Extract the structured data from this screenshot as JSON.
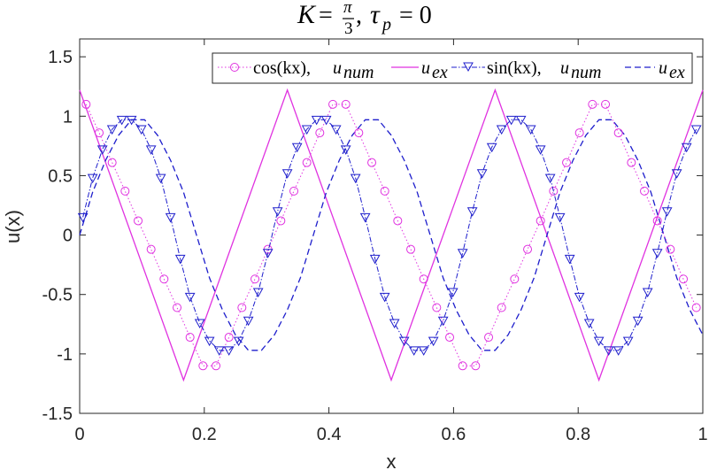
{
  "chart_data": {
    "type": "line",
    "title": {
      "lhs": "K",
      "frac_num": "π",
      "frac_den": "3",
      "sep": ",",
      "tau": "τ",
      "tau_sub": "p",
      "rhs": "= 0"
    },
    "xlabel": "x",
    "ylabel": "u(x)",
    "xlim": [
      0,
      1
    ],
    "ylim": [
      -1.5,
      1.65
    ],
    "xticks": [
      0,
      0.2,
      0.4,
      0.6,
      0.8,
      1
    ],
    "xtick_labels": [
      "0",
      "0.2",
      "0.4",
      "0.6",
      "0.8",
      "1"
    ],
    "yticks": [
      -1.5,
      -1,
      -0.5,
      0,
      0.5,
      1,
      1.5
    ],
    "ytick_labels": [
      "-1.5",
      "-1",
      "-0.5",
      "0",
      "0.5",
      "1",
      "1.5"
    ],
    "grid": false,
    "legend": {
      "placement": "top-right",
      "entries": [
        {
          "label_main": "cos(kx), ",
          "label_sub_base": "u",
          "label_sub": "num",
          "style": "dotted-circle"
        },
        {
          "label_main": "",
          "label_sub_base": "u",
          "label_sub": "ex",
          "style": "solid"
        },
        {
          "label_main": "sin(kx), ",
          "label_sub_base": "u",
          "label_sub": "num",
          "style": "dashdot-triangle"
        },
        {
          "label_main": "",
          "label_sub_base": "u",
          "label_sub": "ex",
          "style": "dashed"
        }
      ]
    },
    "series": [
      {
        "name": "cos(kx), u_num",
        "color": "#E032E0",
        "marker": "circle",
        "line": "dotted",
        "x": [
          0.0104,
          0.0313,
          0.0521,
          0.0729,
          0.0938,
          0.1146,
          0.1354,
          0.1563,
          0.1771,
          0.1979,
          0.2188,
          0.2396,
          0.2604,
          0.2813,
          0.3021,
          0.3229,
          0.3438,
          0.3646,
          0.3854,
          0.4063,
          0.4271,
          0.4479,
          0.4688,
          0.4896,
          0.5104,
          0.5313,
          0.5521,
          0.5729,
          0.5938,
          0.6146,
          0.6354,
          0.6563,
          0.6771,
          0.6979,
          0.7188,
          0.7396,
          0.7604,
          0.7813,
          0.8021,
          0.8229,
          0.8438,
          0.8646,
          0.8854,
          0.9063,
          0.9271,
          0.9479,
          0.9688,
          0.9896
        ],
        "y": [
          1.1,
          0.86,
          0.61,
          0.37,
          0.12,
          -0.12,
          -0.37,
          -0.61,
          -0.86,
          -1.1,
          -1.1,
          -0.86,
          -0.61,
          -0.37,
          -0.12,
          0.12,
          0.37,
          0.61,
          0.86,
          1.1,
          1.1,
          0.86,
          0.61,
          0.37,
          0.12,
          -0.12,
          -0.37,
          -0.61,
          -0.86,
          -1.1,
          -1.1,
          -0.86,
          -0.61,
          -0.37,
          -0.12,
          0.12,
          0.37,
          0.61,
          0.86,
          1.1,
          1.1,
          0.86,
          0.61,
          0.37,
          0.12,
          -0.12,
          -0.37,
          -0.61
        ]
      },
      {
        "name": "cos(kx), u_ex",
        "color": "#E032E0",
        "marker": "none",
        "line": "solid",
        "x": [
          0,
          0.1667,
          0.3333,
          0.5,
          0.6667,
          0.8333,
          1
        ],
        "y": [
          1.22,
          -1.22,
          1.22,
          -1.22,
          1.22,
          -1.22,
          1.22
        ]
      },
      {
        "name": "sin(kx), u_num",
        "color": "#1E1ECC",
        "marker": "triangle-down",
        "line": "dashdot",
        "x": [
          0.0052,
          0.0208,
          0.0365,
          0.0521,
          0.0677,
          0.0833,
          0.099,
          0.1146,
          0.1302,
          0.1458,
          0.1615,
          0.1771,
          0.1927,
          0.2083,
          0.224,
          0.2396,
          0.2552,
          0.2708,
          0.2865,
          0.3021,
          0.3177,
          0.3333,
          0.349,
          0.3646,
          0.3802,
          0.3958,
          0.4115,
          0.4271,
          0.4427,
          0.4583,
          0.474,
          0.4896,
          0.5052,
          0.5208,
          0.5365,
          0.5521,
          0.5677,
          0.5833,
          0.599,
          0.6146,
          0.6302,
          0.6458,
          0.6615,
          0.6771,
          0.6927,
          0.7083,
          0.724,
          0.7396,
          0.7552,
          0.7708,
          0.7865,
          0.8021,
          0.8177,
          0.8333,
          0.849,
          0.8646,
          0.8802,
          0.8958,
          0.9115,
          0.9271,
          0.9427,
          0.9583,
          0.974,
          0.9896
        ],
        "y": [
          0.15,
          0.48,
          0.72,
          0.89,
          0.97,
          0.97,
          0.89,
          0.72,
          0.48,
          0.15,
          -0.2,
          -0.52,
          -0.74,
          -0.89,
          -0.97,
          -0.97,
          -0.89,
          -0.72,
          -0.48,
          -0.15,
          0.2,
          0.52,
          0.74,
          0.89,
          0.97,
          0.97,
          0.89,
          0.72,
          0.48,
          0.15,
          -0.2,
          -0.52,
          -0.74,
          -0.89,
          -0.97,
          -0.97,
          -0.89,
          -0.72,
          -0.48,
          -0.15,
          0.2,
          0.52,
          0.74,
          0.89,
          0.97,
          0.97,
          0.89,
          0.72,
          0.48,
          0.15,
          -0.2,
          -0.52,
          -0.74,
          -0.89,
          -0.97,
          -0.97,
          -0.89,
          -0.72,
          -0.48,
          -0.15,
          0.2,
          0.52,
          0.74,
          0.89
        ]
      },
      {
        "name": "sin(kx), u_ex",
        "color": "#1E1ECC",
        "marker": "none",
        "line": "dashed",
        "x": [
          0,
          0.0208,
          0.0417,
          0.0625,
          0.0833,
          0.1042,
          0.125,
          0.1458,
          0.1667,
          0.1875,
          0.2083,
          0.2292,
          0.25,
          0.2708,
          0.2917,
          0.3125,
          0.3333,
          0.3542,
          0.375,
          0.3958,
          0.4167,
          0.4375,
          0.4583,
          0.4792,
          0.5,
          0.5208,
          0.5417,
          0.5625,
          0.5833,
          0.6042,
          0.625,
          0.6458,
          0.6667,
          0.6875,
          0.7083,
          0.7292,
          0.75,
          0.7708,
          0.7917,
          0.8125,
          0.8333,
          0.8542,
          0.875,
          0.8958,
          0.9167,
          0.9375,
          0.9583,
          0.9792,
          1
        ],
        "y": [
          0,
          0.36,
          0.63,
          0.84,
          0.97,
          0.97,
          0.84,
          0.63,
          0.36,
          0,
          -0.36,
          -0.63,
          -0.84,
          -0.97,
          -0.97,
          -0.84,
          -0.63,
          -0.36,
          0,
          0.36,
          0.63,
          0.84,
          0.97,
          0.97,
          0.84,
          0.63,
          0.36,
          0,
          -0.36,
          -0.63,
          -0.84,
          -0.97,
          -0.97,
          -0.84,
          -0.63,
          -0.36,
          0,
          0.36,
          0.63,
          0.84,
          0.97,
          0.97,
          0.84,
          0.63,
          0.36,
          0,
          -0.36,
          -0.63,
          -0.84
        ]
      }
    ]
  }
}
